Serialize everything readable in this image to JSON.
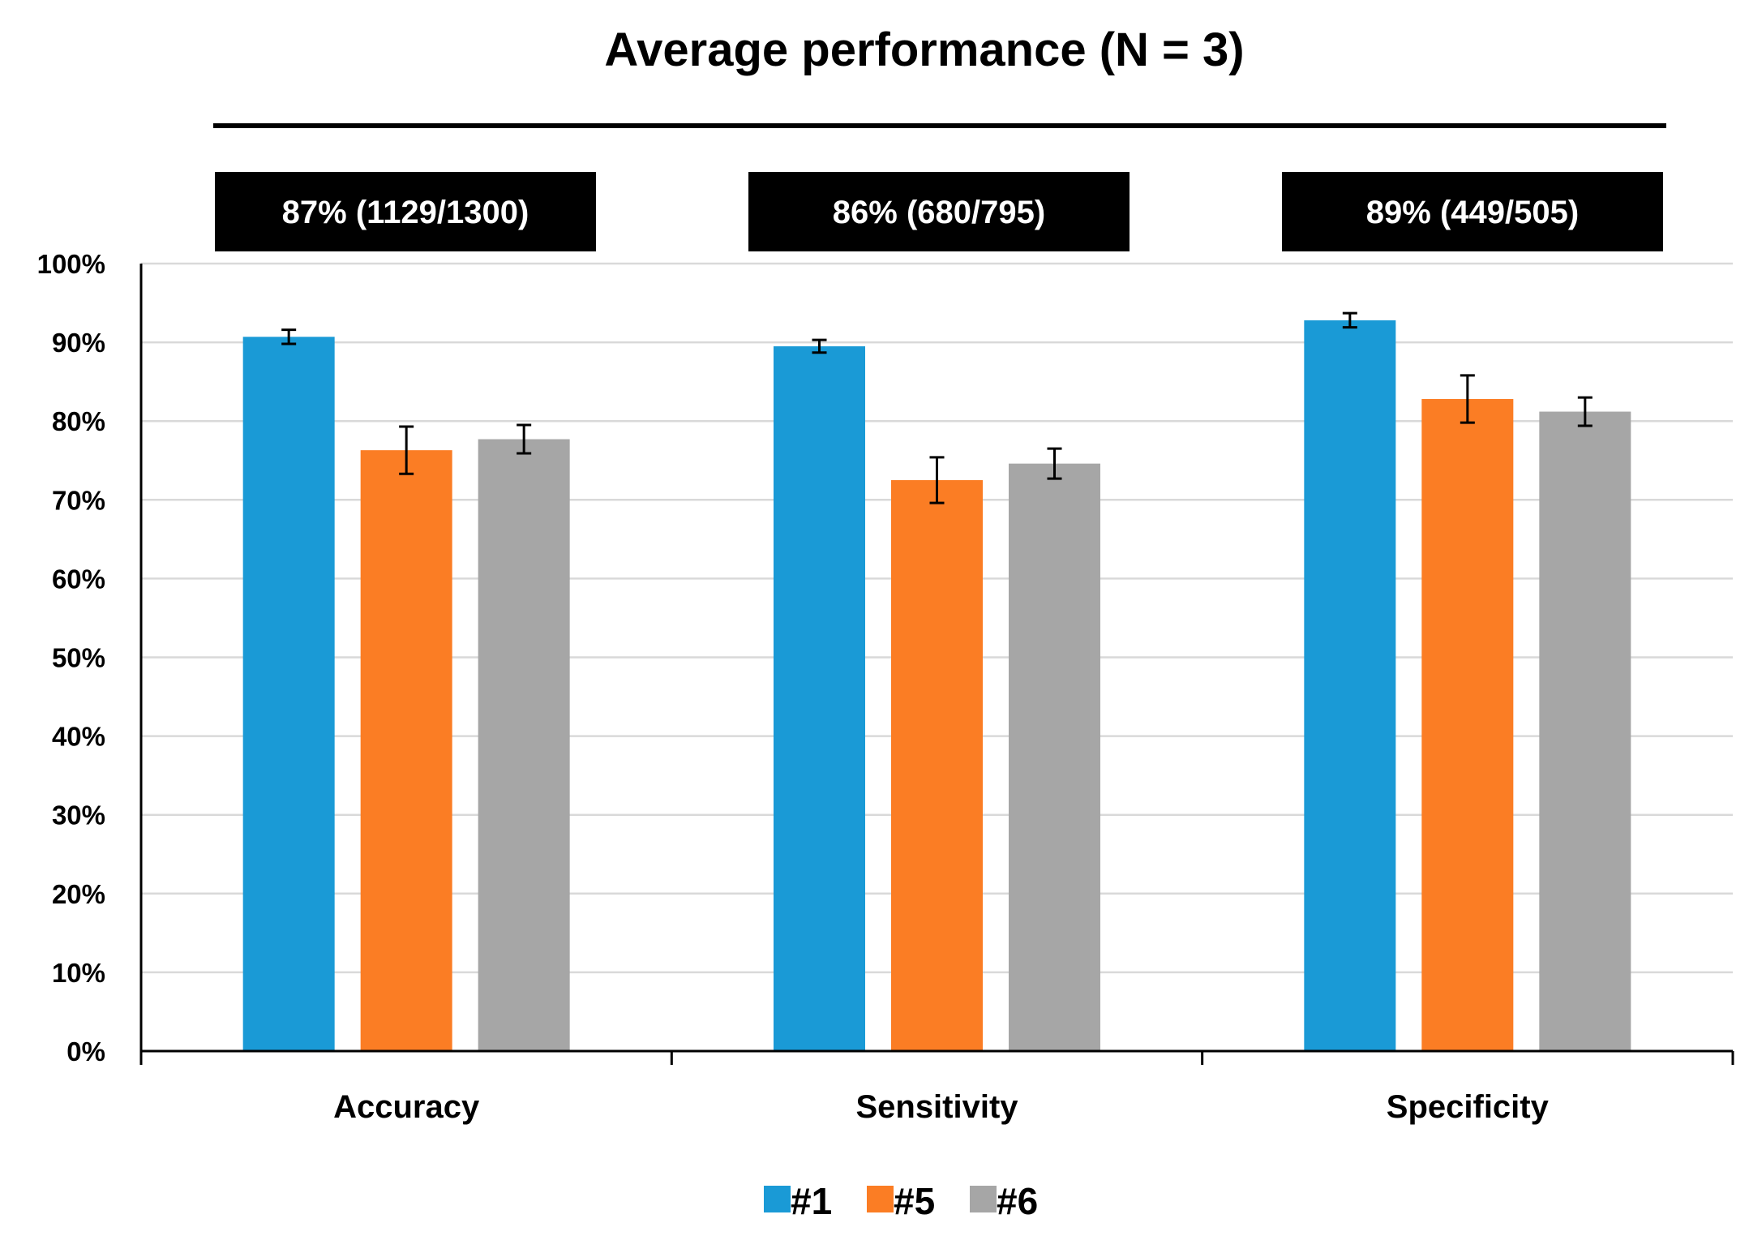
{
  "chart_data": {
    "type": "bar",
    "title": "Average performance (N = 3)",
    "xlabel": "",
    "ylabel": "",
    "categories": [
      "Accuracy",
      "Sensitivity",
      "Specificity"
    ],
    "ylim": [
      0,
      100
    ],
    "y_ticks": [
      "0%",
      "10%",
      "20%",
      "30%",
      "40%",
      "50%",
      "60%",
      "70%",
      "80%",
      "90%",
      "100%"
    ],
    "grid": true,
    "legend_position": "bottom-center",
    "series": [
      {
        "name": "#1",
        "color": "#1a9ad6",
        "values": [
          90.7,
          89.5,
          92.8
        ],
        "errors": [
          0.9,
          0.8,
          0.9
        ]
      },
      {
        "name": "#5",
        "color": "#fb7d24",
        "values": [
          76.3,
          72.5,
          82.8
        ],
        "errors": [
          3.0,
          2.9,
          3.0
        ]
      },
      {
        "name": "#6",
        "color": "#a6a6a6",
        "values": [
          77.7,
          74.6,
          81.2
        ],
        "errors": [
          1.8,
          1.9,
          1.8
        ]
      }
    ],
    "summaries": [
      "87% (1129/1300)",
      "86% (680/795)",
      "89% (449/505)"
    ]
  }
}
